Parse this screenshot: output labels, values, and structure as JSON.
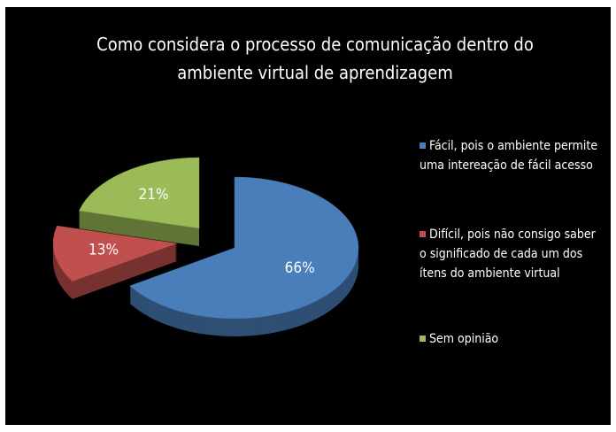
{
  "chart_data": {
    "type": "pie",
    "title": "Como considera o processo de comunicação dentro do ambiente virtual de aprendizagem",
    "categories": [
      "Fácil, pois o ambiente permite uma intereação de fácil acesso",
      "Difícil, pois não consigo saber o significado de cada um dos ítens do ambiente virtual",
      "Sem opinião"
    ],
    "values": [
      66,
      13,
      21
    ],
    "value_labels": [
      "66%",
      "13%",
      "21%"
    ],
    "colors": [
      "#4a7ebb",
      "#c0504d",
      "#9bbb59"
    ],
    "legend": "right"
  }
}
